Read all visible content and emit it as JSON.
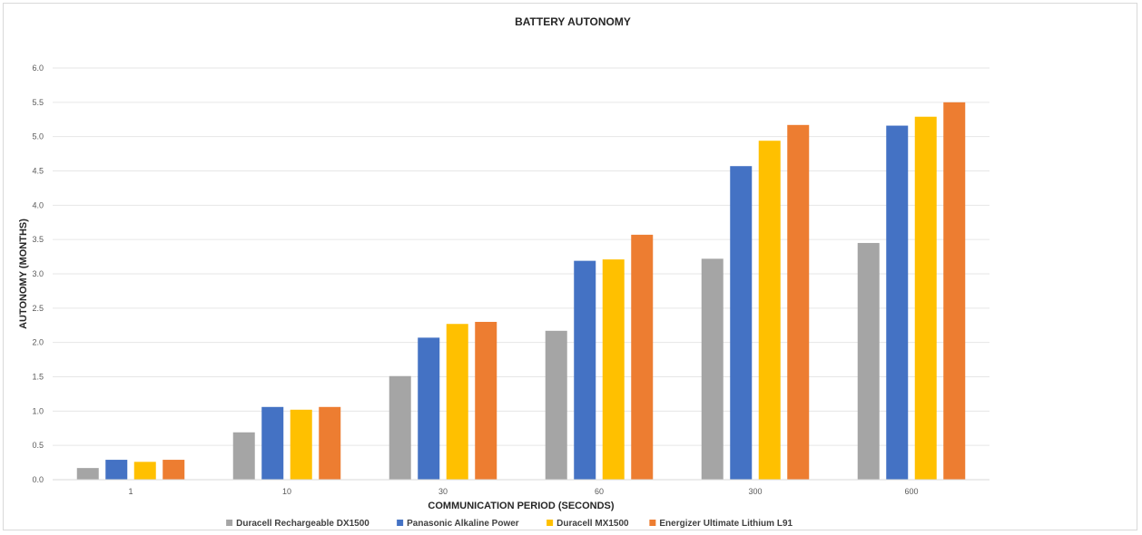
{
  "chart_data": {
    "type": "bar",
    "title": "BATTERY AUTONOMY",
    "xlabel": "COMMUNICATION PERIOD (SECONDS)",
    "ylabel": "AUTONOMY (MONTHS)",
    "categories": [
      "1",
      "10",
      "30",
      "60",
      "300",
      "600"
    ],
    "ylim": [
      0,
      6
    ],
    "yticks": [
      "0.0",
      "0.5",
      "1.0",
      "1.5",
      "2.0",
      "2.5",
      "3.0",
      "3.5",
      "4.0",
      "4.5",
      "5.0",
      "5.5",
      "6.0"
    ],
    "grid": true,
    "legend_position": "bottom",
    "series": [
      {
        "name": "Duracell Rechargeable DX1500",
        "color": "#a5a5a5",
        "values": [
          0.17,
          0.69,
          1.51,
          2.17,
          3.22,
          3.45
        ]
      },
      {
        "name": "Panasonic Alkaline Power",
        "color": "#4472c4",
        "values": [
          0.29,
          1.06,
          2.07,
          3.19,
          4.57,
          5.16
        ]
      },
      {
        "name": "Duracell MX1500",
        "color": "#ffc000",
        "values": [
          0.26,
          1.02,
          2.27,
          3.21,
          4.94,
          5.29
        ]
      },
      {
        "name": "Energizer Ultimate Lithium L91",
        "color": "#ed7d31",
        "values": [
          0.29,
          1.06,
          2.3,
          3.57,
          5.17,
          5.5
        ]
      }
    ]
  }
}
